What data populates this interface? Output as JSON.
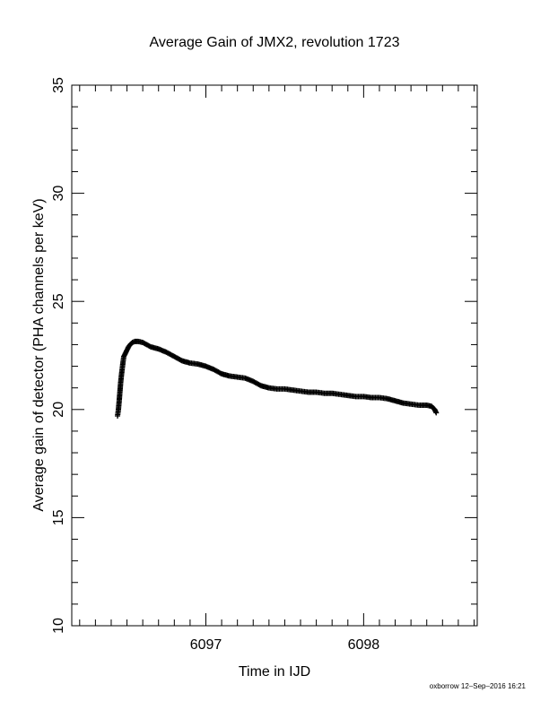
{
  "chart_data": {
    "type": "scatter",
    "title": "Average Gain of JMX2, revolution 1723",
    "xlabel": "Time in IJD",
    "ylabel": "Average gain of detector (PHA channels per keV)",
    "xlim": [
      6096.15,
      6098.72
    ],
    "ylim": [
      10,
      35
    ],
    "x_ticks": [
      6097,
      6098
    ],
    "y_ticks": [
      10,
      15,
      20,
      25,
      30,
      35
    ],
    "marker": "plus",
    "marker_color": "#000000",
    "grid": false,
    "series": [
      {
        "x": [
          6096.44,
          6096.445,
          6096.45,
          6096.455,
          6096.46,
          6096.465,
          6096.47,
          6096.475,
          6096.48,
          6096.49,
          6096.5,
          6096.51,
          6096.52,
          6096.535,
          6096.55,
          6096.57,
          6096.6,
          6096.65,
          6096.7,
          6096.75,
          6096.8,
          6096.85,
          6096.9,
          6096.95,
          6097.0,
          6097.05,
          6097.1,
          6097.15,
          6097.2,
          6097.25,
          6097.3,
          6097.35,
          6097.4,
          6097.45,
          6097.5,
          6097.55,
          6097.6,
          6097.65,
          6097.7,
          6097.75,
          6097.8,
          6097.85,
          6097.9,
          6097.95,
          6098.0,
          6098.05,
          6098.1,
          6098.15,
          6098.2,
          6098.25,
          6098.3,
          6098.35,
          6098.4,
          6098.43,
          6098.45,
          6098.46
        ],
        "y": [
          19.7,
          19.95,
          20.35,
          20.8,
          21.25,
          21.6,
          21.9,
          22.2,
          22.45,
          22.6,
          22.75,
          22.9,
          23.0,
          23.1,
          23.15,
          23.15,
          23.1,
          22.9,
          22.8,
          22.65,
          22.45,
          22.25,
          22.15,
          22.1,
          22.0,
          21.85,
          21.65,
          21.55,
          21.5,
          21.45,
          21.3,
          21.1,
          21.0,
          20.95,
          20.95,
          20.9,
          20.85,
          20.8,
          20.8,
          20.75,
          20.75,
          20.7,
          20.65,
          20.6,
          20.6,
          20.55,
          20.55,
          20.5,
          20.4,
          20.3,
          20.25,
          20.2,
          20.2,
          20.15,
          20.0,
          19.85
        ]
      }
    ]
  },
  "footer": {
    "stamp": "oxborrow 12–Sep–2016 16:21"
  }
}
